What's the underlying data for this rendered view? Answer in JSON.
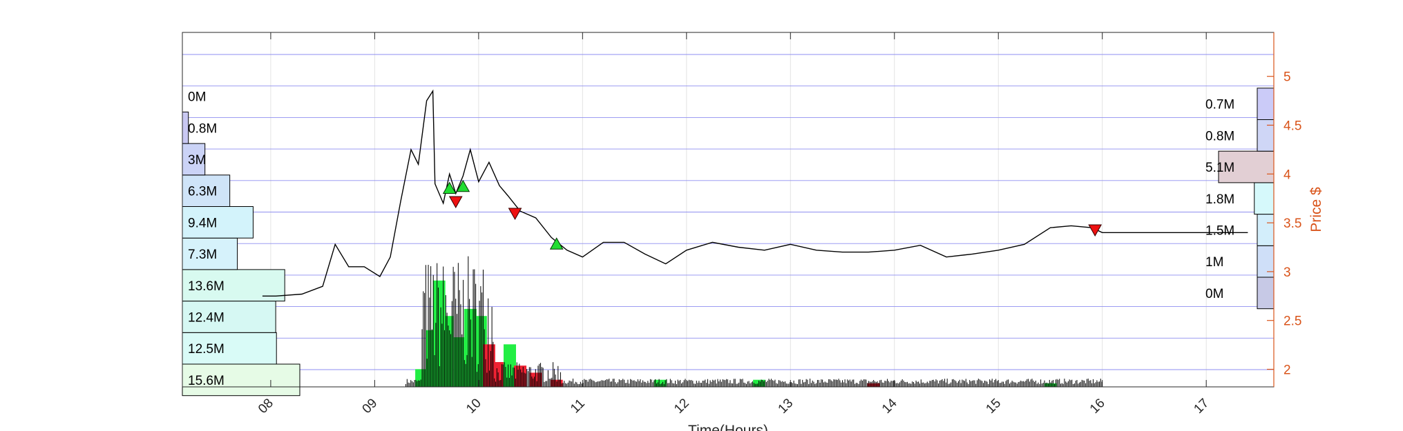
{
  "chart_data": {
    "type": "line",
    "xlabel": "Time(Hours)",
    "ylabel": "Price $",
    "xlim": [
      7.15,
      17.65
    ],
    "ylim": [
      1.82,
      5.45
    ],
    "x_ticks": [
      8,
      9,
      10,
      11,
      12,
      13,
      14,
      15,
      16,
      17
    ],
    "x_tick_labels": [
      "08",
      "09",
      "10",
      "11",
      "12",
      "13",
      "14",
      "15",
      "16",
      "17"
    ],
    "y_ticks": [
      2,
      2.5,
      3,
      3.5,
      4,
      4.5,
      5
    ],
    "y_tick_labels": [
      "2",
      "2.5",
      "3",
      "3.5",
      "4",
      "4.5",
      "5"
    ],
    "grid": true,
    "price_series": [
      [
        7.92,
        2.75
      ],
      [
        8.05,
        2.75
      ],
      [
        8.3,
        2.77
      ],
      [
        8.5,
        2.85
      ],
      [
        8.62,
        3.28
      ],
      [
        8.75,
        3.05
      ],
      [
        8.9,
        3.05
      ],
      [
        9.05,
        2.95
      ],
      [
        9.15,
        3.15
      ],
      [
        9.25,
        3.72
      ],
      [
        9.35,
        4.25
      ],
      [
        9.42,
        4.1
      ],
      [
        9.5,
        4.75
      ],
      [
        9.56,
        4.85
      ],
      [
        9.58,
        3.9
      ],
      [
        9.66,
        3.7
      ],
      [
        9.72,
        4.0
      ],
      [
        9.78,
        3.8
      ],
      [
        9.85,
        3.98
      ],
      [
        9.92,
        4.25
      ],
      [
        10.0,
        3.92
      ],
      [
        10.1,
        4.12
      ],
      [
        10.2,
        3.88
      ],
      [
        10.28,
        3.78
      ],
      [
        10.4,
        3.62
      ],
      [
        10.55,
        3.55
      ],
      [
        10.7,
        3.35
      ],
      [
        10.85,
        3.22
      ],
      [
        11.0,
        3.15
      ],
      [
        11.2,
        3.3
      ],
      [
        11.4,
        3.3
      ],
      [
        11.6,
        3.18
      ],
      [
        11.8,
        3.08
      ],
      [
        12.0,
        3.22
      ],
      [
        12.25,
        3.3
      ],
      [
        12.5,
        3.25
      ],
      [
        12.75,
        3.22
      ],
      [
        13.0,
        3.28
      ],
      [
        13.25,
        3.22
      ],
      [
        13.5,
        3.2
      ],
      [
        13.75,
        3.2
      ],
      [
        14.0,
        3.22
      ],
      [
        14.25,
        3.27
      ],
      [
        14.5,
        3.15
      ],
      [
        14.75,
        3.18
      ],
      [
        15.0,
        3.22
      ],
      [
        15.25,
        3.28
      ],
      [
        15.5,
        3.45
      ],
      [
        15.7,
        3.47
      ],
      [
        15.9,
        3.45
      ],
      [
        16.0,
        3.4
      ],
      [
        16.3,
        3.4
      ],
      [
        17.4,
        3.4
      ]
    ],
    "volume_bars": [
      {
        "x": 9.45,
        "h": 0.05,
        "c": "green"
      },
      {
        "x": 9.55,
        "h": 0.16,
        "c": "green"
      },
      {
        "x": 9.62,
        "h": 0.3,
        "c": "green"
      },
      {
        "x": 9.7,
        "h": 0.2,
        "c": "green"
      },
      {
        "x": 9.82,
        "h": 0.14,
        "c": "green"
      },
      {
        "x": 9.92,
        "h": 0.22,
        "c": "green"
      },
      {
        "x": 10.02,
        "h": 0.2,
        "c": "green"
      },
      {
        "x": 10.1,
        "h": 0.12,
        "c": "red"
      },
      {
        "x": 10.18,
        "h": 0.07,
        "c": "red"
      },
      {
        "x": 10.3,
        "h": 0.12,
        "c": "green"
      },
      {
        "x": 10.4,
        "h": 0.06,
        "c": "red"
      },
      {
        "x": 10.55,
        "h": 0.04,
        "c": "red"
      },
      {
        "x": 10.75,
        "h": 0.02,
        "c": "red"
      },
      {
        "x": 11.75,
        "h": 0.02,
        "c": "green"
      },
      {
        "x": 12.7,
        "h": 0.02,
        "c": "green"
      },
      {
        "x": 13.8,
        "h": 0.01,
        "c": "red"
      },
      {
        "x": 15.5,
        "h": 0.01,
        "c": "green"
      }
    ],
    "buy_signals": [
      [
        9.72,
        3.85
      ],
      [
        9.85,
        3.87
      ],
      [
        10.75,
        3.28
      ]
    ],
    "sell_signals": [
      [
        9.78,
        3.72
      ],
      [
        10.35,
        3.6
      ],
      [
        15.93,
        3.43
      ]
    ],
    "left_profile": [
      {
        "price": 2.0,
        "value": 15.6,
        "label": "15.6M",
        "color": "#e6fbe6"
      },
      {
        "price": 2.3,
        "value": 12.5,
        "label": "12.5M",
        "color": "#d9fbf7"
      },
      {
        "price": 2.6,
        "value": 12.4,
        "label": "12.4M",
        "color": "#d6f8f3"
      },
      {
        "price": 2.9,
        "value": 13.6,
        "label": "13.6M",
        "color": "#d8faf0"
      },
      {
        "price": 3.2,
        "value": 7.3,
        "label": "7.3M",
        "color": "#d6f2fb"
      },
      {
        "price": 3.5,
        "value": 9.4,
        "label": "9.4M",
        "color": "#d3f3fb"
      },
      {
        "price": 3.8,
        "value": 6.3,
        "label": "6.3M",
        "color": "#cfe4f8"
      },
      {
        "price": 4.1,
        "value": 3,
        "label": "3M",
        "color": "#cbd3f6"
      },
      {
        "price": 4.4,
        "value": 0.8,
        "label": "0.8M",
        "color": "#c9c8f2"
      },
      {
        "price": 4.7,
        "value": 0,
        "label": "0M",
        "color": "#c9c8f2"
      }
    ],
    "right_profile": [
      {
        "price": 2.65,
        "value": 0,
        "label": "0M",
        "color": "#c7c9e6"
      },
      {
        "price": 2.98,
        "value": 1,
        "label": "1M",
        "color": "#cfdff8"
      },
      {
        "price": 3.3,
        "value": 1.5,
        "label": "1.5M",
        "color": "#d3eefb"
      },
      {
        "price": 3.62,
        "value": 1.8,
        "label": "1.8M",
        "color": "#d6f9fb"
      },
      {
        "price": 3.95,
        "value": 5.1,
        "label": "5.1M",
        "color": "#e2cfd4"
      },
      {
        "price": 4.28,
        "value": 0.8,
        "label": "0.8M",
        "color": "#cfd6f6"
      },
      {
        "price": 4.6,
        "value": 0.7,
        "label": "0.7M",
        "color": "#cbcbf8"
      }
    ]
  }
}
